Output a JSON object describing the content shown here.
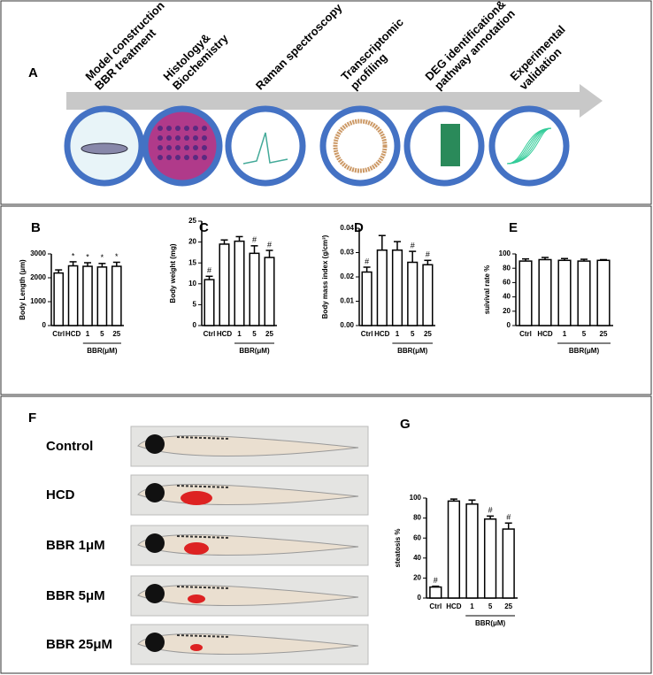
{
  "panel_a": {
    "label": "A",
    "steps": [
      [
        "Model construction",
        "BBR treatment"
      ],
      [
        "Histology&",
        "Biochemistry"
      ],
      [
        "Raman spectroscopy"
      ],
      [
        "Transcriptomic",
        "profiling"
      ],
      [
        "DEG identification&",
        "pathway annotation"
      ],
      [
        "Experimental",
        "validation"
      ]
    ]
  },
  "chart_data": [
    {
      "panel": "B",
      "type": "bar",
      "ylabel": "Body Length (μm)",
      "categories": [
        "Ctrl",
        "HCD",
        "1",
        "5",
        "25"
      ],
      "values": [
        2200,
        2500,
        2480,
        2450,
        2480
      ],
      "errors": [
        130,
        170,
        150,
        150,
        170
      ],
      "annotations": [
        null,
        "*",
        "*",
        "*",
        "*"
      ],
      "group_label": "BBR(μM)",
      "ylim": [
        0,
        3000
      ],
      "yticks": [
        0,
        1000,
        2000,
        3000
      ],
      "color": "#ffffff"
    },
    {
      "panel": "C",
      "type": "bar",
      "ylabel": "Body weight (mg)",
      "categories": [
        "Ctrl",
        "HCD",
        "1",
        "5",
        "25"
      ],
      "values": [
        11,
        19.5,
        20.2,
        17.3,
        16.3
      ],
      "errors": [
        0.8,
        1,
        1.1,
        1.8,
        1.7
      ],
      "annotations": [
        "#",
        null,
        null,
        "#",
        "#"
      ],
      "group_label": "BBR(μM)",
      "ylim": [
        0,
        25
      ],
      "yticks": [
        0,
        5,
        10,
        15,
        20,
        25
      ],
      "color": "#ffffff"
    },
    {
      "panel": "D",
      "type": "bar",
      "ylabel": "Body mass index (g/cm³)",
      "categories": [
        "Ctrl",
        "HCD",
        "1",
        "5",
        "25"
      ],
      "values": [
        0.022,
        0.031,
        0.031,
        0.026,
        0.025
      ],
      "errors": [
        0.002,
        0.006,
        0.0035,
        0.0045,
        0.0018
      ],
      "annotations": [
        "#",
        null,
        null,
        "#",
        "#"
      ],
      "group_label": "BBR(μM)",
      "ylim": [
        0,
        0.04
      ],
      "yticks": [
        {
          "value": 0,
          "label": "0.00"
        },
        0.01,
        0.02,
        0.03,
        0.04
      ],
      "color": "#ffffff"
    },
    {
      "panel": "E",
      "type": "bar",
      "ylabel": "suivival rate %",
      "categories": [
        "Ctrl",
        "HCD",
        "1",
        "5",
        "25"
      ],
      "values": [
        90,
        92,
        91,
        90,
        91
      ],
      "errors": [
        3,
        3,
        2.5,
        2.5,
        1
      ],
      "annotations": [
        null,
        null,
        null,
        null,
        null
      ],
      "group_label": "BBR(μM)",
      "ylim": [
        0,
        100
      ],
      "yticks": [
        0,
        20,
        40,
        60,
        80,
        100
      ],
      "color": "#ffffff"
    },
    {
      "panel": "G",
      "type": "bar",
      "ylabel": "steatosis %",
      "categories": [
        "Ctrl",
        "HCD",
        "1",
        "5",
        "25"
      ],
      "values": [
        11,
        97,
        94,
        79,
        69
      ],
      "errors": [
        0.8,
        2,
        4,
        3,
        6
      ],
      "annotations": [
        "#",
        null,
        null,
        "#",
        "#"
      ],
      "group_label": "BBR(μM)",
      "ylim": [
        0,
        100
      ],
      "yticks": [
        0,
        20,
        40,
        60,
        80,
        100
      ],
      "color": "#ffffff"
    }
  ],
  "panel_f": {
    "label": "F",
    "rows": [
      "Control",
      "HCD",
      "BBR 1μM",
      "BBR 5μM",
      "BBR 25μM"
    ]
  }
}
